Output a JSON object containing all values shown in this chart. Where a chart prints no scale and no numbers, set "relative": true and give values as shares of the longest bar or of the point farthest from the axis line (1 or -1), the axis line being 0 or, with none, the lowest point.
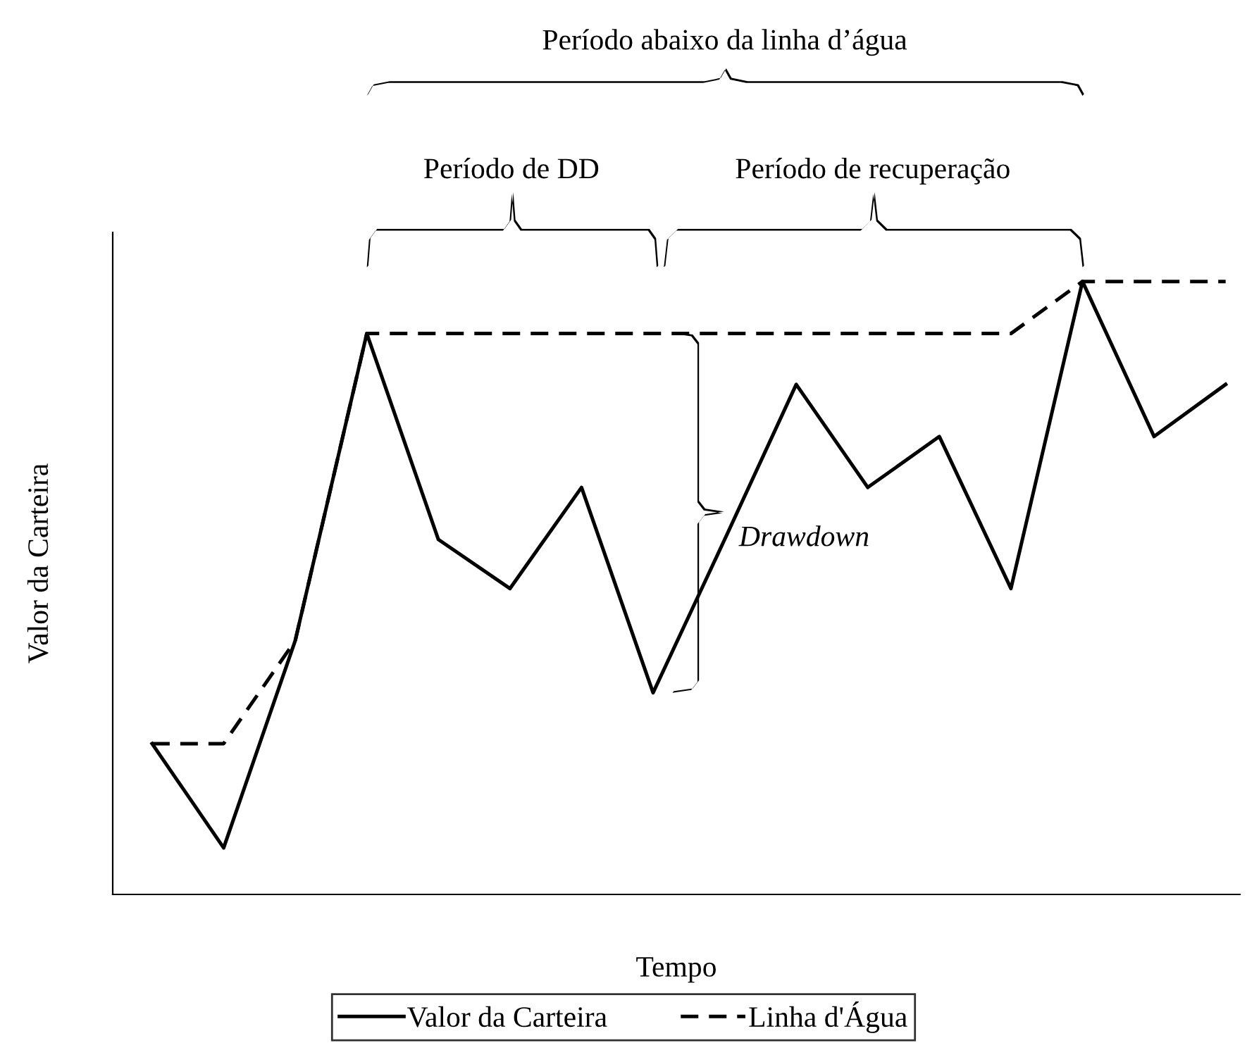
{
  "chart_data": {
    "type": "line",
    "relative": true,
    "xlabel": "Tempo",
    "ylabel": "Valor da Carteira",
    "categories": [
      null,
      null,
      null,
      null,
      null,
      null,
      null,
      null,
      null,
      null,
      null,
      null,
      null,
      null,
      null,
      null
    ],
    "series": [
      {
        "name": "Valor da Carteira",
        "color": "#000000",
        "line_style": "solid",
        "values": [
          0.246,
          0.076,
          0.414,
          0.915,
          0.579,
          0.499,
          0.664,
          0.329,
          0.579,
          0.832,
          0.664,
          0.747,
          0.499,
          1,
          0.747,
          0.832
        ]
      },
      {
        "name": "Linha d'Água",
        "color": "#000000",
        "line_style": "dashed",
        "values": [
          0.246,
          0.246,
          0.414,
          0.915,
          0.915,
          0.915,
          0.915,
          0.915,
          0.915,
          0.915,
          0.915,
          0.915,
          0.915,
          1,
          1,
          1
        ]
      }
    ],
    "annotations": [
      "Período abaixo da linha d’água",
      "Período de DD",
      "Período de recuperação",
      "Drawdown"
    ],
    "legend": "bottom",
    "grid": false,
    "marker": "none"
  }
}
